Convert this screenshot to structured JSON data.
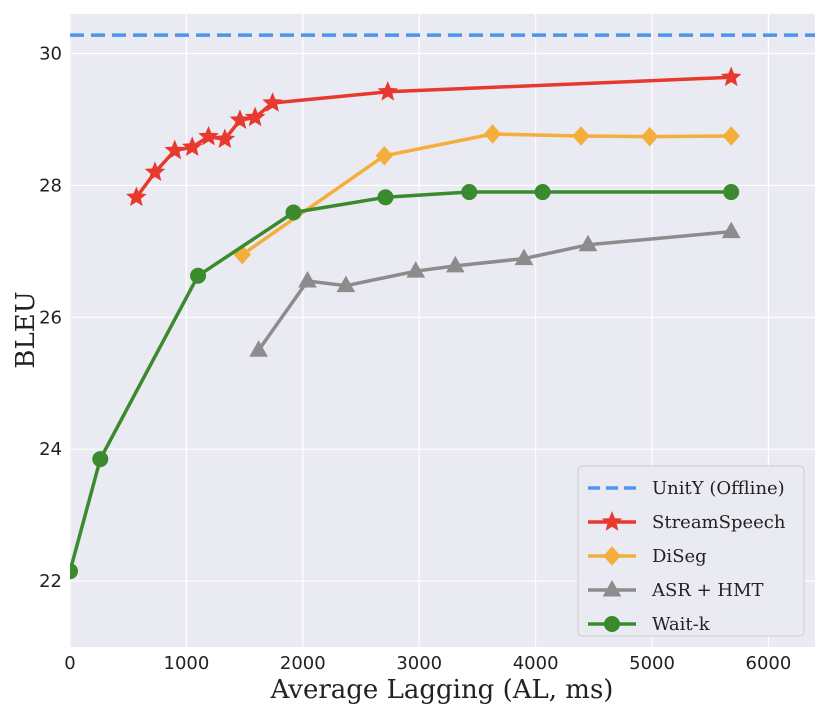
{
  "chart_data": {
    "type": "line",
    "title": "",
    "xlabel": "Average Lagging (AL, ms)",
    "ylabel": "BLEU",
    "xlim": [
      0,
      6400
    ],
    "ylim": [
      21,
      30.6
    ],
    "xticks": [
      "0",
      "1000",
      "2000",
      "3000",
      "4000",
      "5000",
      "6000"
    ],
    "yticks": [
      "22",
      "24",
      "26",
      "28",
      "30"
    ],
    "grid": true,
    "legend_position": "lower-right",
    "series": [
      {
        "name": "UnitY (Offline)",
        "style": "dashed",
        "color": "#4d94f0",
        "marker": "none",
        "y_constant": 30.28
      },
      {
        "name": "StreamSpeech",
        "color": "#e8392f",
        "marker": "star",
        "x": [
          570,
          730,
          900,
          1050,
          1190,
          1330,
          1460,
          1590,
          1740,
          2730,
          5680
        ],
        "y": [
          27.82,
          28.2,
          28.53,
          28.58,
          28.74,
          28.7,
          28.99,
          29.03,
          29.25,
          29.42,
          29.64
        ]
      },
      {
        "name": "DiSeg",
        "color": "#f4ae3b",
        "marker": "diamond",
        "x": [
          1480,
          2700,
          3630,
          4390,
          4980,
          5680
        ],
        "y": [
          26.95,
          28.45,
          28.78,
          28.75,
          28.74,
          28.75
        ]
      },
      {
        "name": "ASR + HMT",
        "color": "#8c8c8c",
        "marker": "triangle",
        "x": [
          1620,
          2040,
          2370,
          2970,
          3310,
          3900,
          4450,
          5680
        ],
        "y": [
          25.5,
          26.55,
          26.48,
          26.7,
          26.78,
          26.89,
          27.1,
          27.3
        ]
      },
      {
        "name": "Wait-k",
        "color": "#3a8a2e",
        "marker": "circle",
        "x": [
          0,
          260,
          1100,
          1920,
          2710,
          3430,
          4060,
          5680
        ],
        "y": [
          22.15,
          23.85,
          26.63,
          27.59,
          27.82,
          27.9,
          27.9,
          27.9
        ]
      }
    ]
  }
}
